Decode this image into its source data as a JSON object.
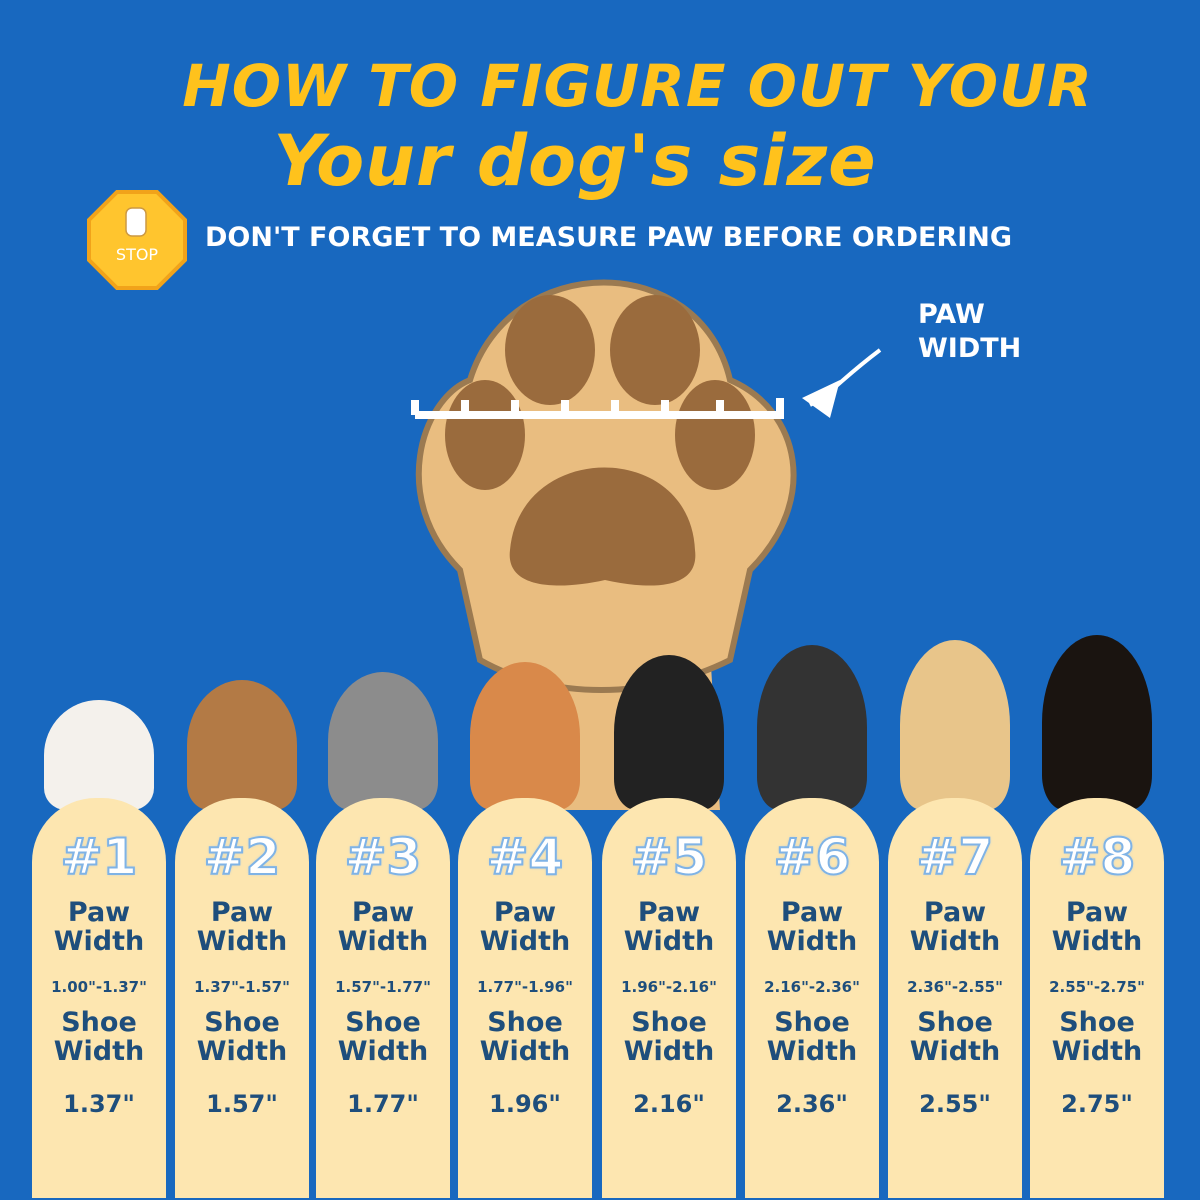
{
  "header": {
    "title_line1": "HOW TO FIGURE OUT YOUR",
    "title_line2": "Your dog's size",
    "stop_sign": "STOP",
    "subtitle": "DON'T FORGET TO MEASURE PAW BEFORE ORDERING"
  },
  "paw_label": {
    "line1": "PAW",
    "line2": "WIDTH"
  },
  "cards": [
    {
      "number": "#1",
      "paw_label": "Paw Width",
      "paw_range": "1.00\"-1.37\"",
      "shoe_label": "Shoe Width",
      "shoe_width": "1.37\""
    },
    {
      "number": "#2",
      "paw_label": "Paw Width",
      "paw_range": "1.37\"-1.57\"",
      "shoe_label": "Shoe Width",
      "shoe_width": "1.57\""
    },
    {
      "number": "#3",
      "paw_label": "Paw Width",
      "paw_range": "1.57\"-1.77\"",
      "shoe_label": "Shoe Width",
      "shoe_width": "1.77\""
    },
    {
      "number": "#4",
      "paw_label": "Paw Width",
      "paw_range": "1.77\"-1.96\"",
      "shoe_label": "Shoe Width",
      "shoe_width": "1.96\""
    },
    {
      "number": "#5",
      "paw_label": "Paw Width",
      "paw_range": "1.96\"-2.16\"",
      "shoe_label": "Shoe Width",
      "shoe_width": "2.16\""
    },
    {
      "number": "#6",
      "paw_label": "Paw Width",
      "paw_range": "2.16\"-2.36\"",
      "shoe_label": "Shoe Width",
      "shoe_width": "2.36\""
    },
    {
      "number": "#7",
      "paw_label": "Paw Width",
      "paw_range": "2.36\"-2.55\"",
      "shoe_label": "Shoe Width",
      "shoe_width": "2.55\""
    },
    {
      "number": "#8",
      "paw_label": "Paw Width",
      "paw_range": "2.55\"-2.75\"",
      "shoe_label": "Shoe Width",
      "shoe_width": "2.75\""
    }
  ]
}
